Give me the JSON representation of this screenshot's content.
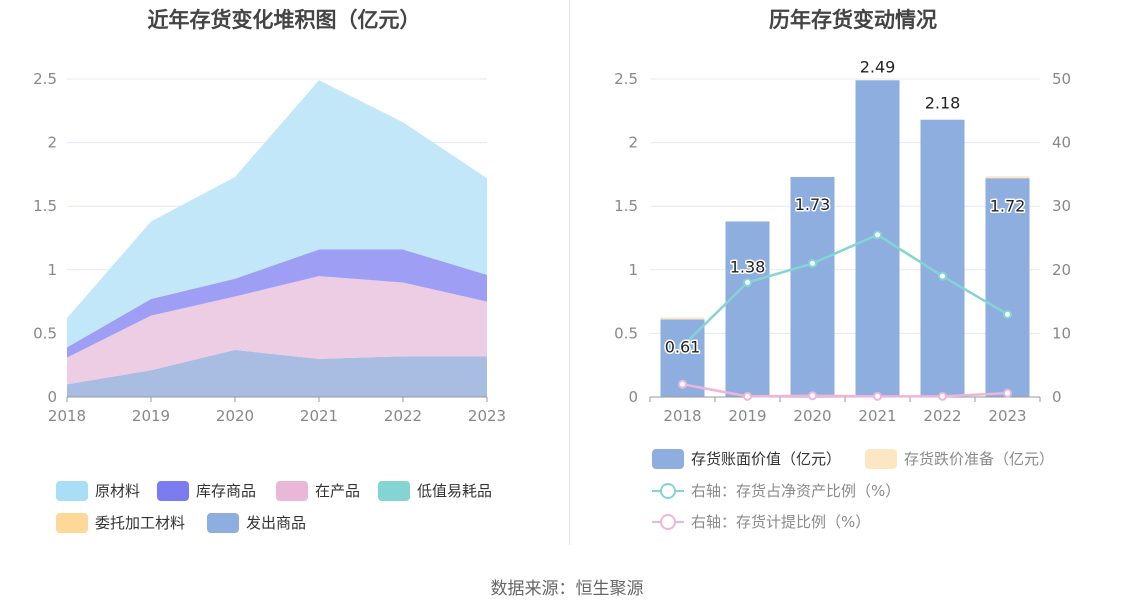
{
  "source": "数据来源：恒生聚源",
  "chart_data": [
    {
      "type": "area",
      "title": "近年存货变化堆积图（亿元）",
      "x": [
        "2018",
        "2019",
        "2020",
        "2021",
        "2022",
        "2023"
      ],
      "stacked": true,
      "ylim": [
        0,
        2.5
      ],
      "yticks": [
        "0",
        "0.5",
        "1",
        "1.5",
        "2",
        "2.5"
      ],
      "grid": true,
      "legend_position": "bottom",
      "series": [
        {
          "name": "发出商品",
          "color": "#a9bde3",
          "values": [
            0.1,
            0.21,
            0.37,
            0.3,
            0.32,
            0.32
          ]
        },
        {
          "name": "委托加工材料",
          "color": "#fdd898",
          "values": [
            0.0,
            0.0,
            0.0,
            0.0,
            0.0,
            0.0
          ]
        },
        {
          "name": "在产品",
          "color": "#edcde3",
          "values": [
            0.21,
            0.43,
            0.42,
            0.65,
            0.58,
            0.43
          ]
        },
        {
          "name": "低值易耗品",
          "color": "#84d4d4",
          "values": [
            0.0,
            0.0,
            0.0,
            0.0,
            0.0,
            0.0
          ]
        },
        {
          "name": "库存商品",
          "color": "#9e9ef5",
          "values": [
            0.08,
            0.13,
            0.14,
            0.21,
            0.26,
            0.21
          ]
        },
        {
          "name": "原材料",
          "color": "#c2e7f9",
          "values": [
            0.23,
            0.61,
            0.8,
            1.33,
            1.0,
            0.76
          ]
        }
      ],
      "legend_order": [
        "原材料",
        "库存商品",
        "在产品",
        "低值易耗品",
        "委托加工材料",
        "发出商品"
      ],
      "legend_colors": {
        "原材料": "#a9def7",
        "库存商品": "#7b7cef",
        "在产品": "#e9b8d9",
        "低值易耗品": "#84d4d4",
        "委托加工材料": "#fdd898",
        "发出商品": "#8eaedf"
      }
    },
    {
      "type": "bar",
      "title": "历年存货变动情况",
      "categories": [
        "2018",
        "2019",
        "2020",
        "2021",
        "2022",
        "2023"
      ],
      "ylim": [
        0,
        2.5
      ],
      "yticks": [
        "0",
        "0.5",
        "1",
        "1.5",
        "2",
        "2.5"
      ],
      "y2lim": [
        0,
        50
      ],
      "y2ticks": [
        "0",
        "10",
        "20",
        "30",
        "40",
        "50"
      ],
      "grid": true,
      "legend_position": "bottom",
      "series": [
        {
          "name": "存货账面价值（亿元）",
          "type": "bar",
          "color": "#8eaedf",
          "values": [
            0.61,
            1.38,
            1.73,
            2.49,
            2.18,
            1.72
          ],
          "labels": [
            "0.61",
            "1.38",
            "1.73",
            "2.49",
            "2.18",
            "1.72"
          ]
        },
        {
          "name": "存货跌价准备（亿元）",
          "type": "bar",
          "color": "#fde7c2",
          "values": [
            0.006,
            0.0,
            0.0,
            0.0,
            0.0,
            0.012
          ]
        },
        {
          "name": "右轴：存货占净资产比例（%）",
          "type": "line",
          "axis": "right",
          "color": "#84d4d4",
          "values": [
            8.0,
            18.0,
            21.0,
            25.5,
            19.0,
            13.0
          ]
        },
        {
          "name": "右轴：存货计提比例（%）",
          "type": "line",
          "axis": "right",
          "color": "#edb6d9",
          "values": [
            2.0,
            0.1,
            0.2,
            0.1,
            0.1,
            0.6
          ]
        }
      ]
    }
  ]
}
